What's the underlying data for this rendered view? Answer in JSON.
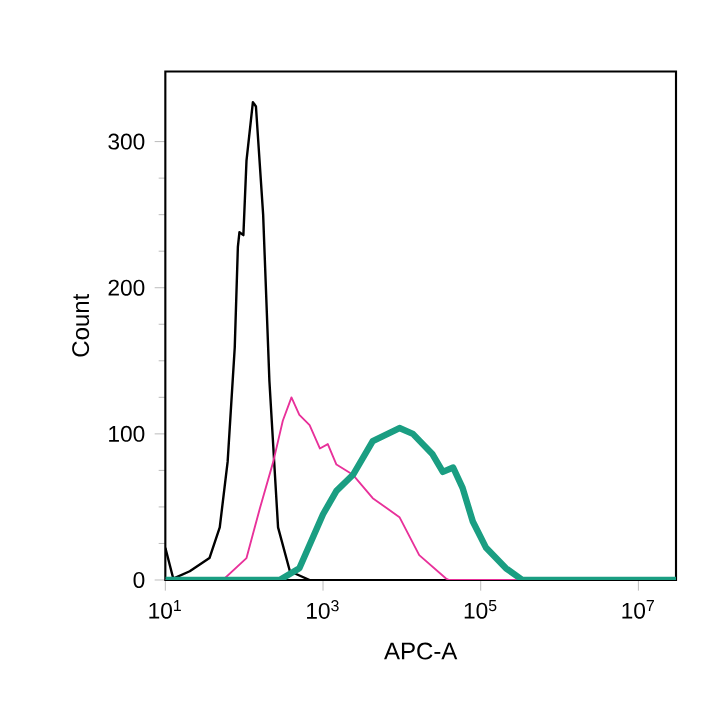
{
  "chart_data": {
    "type": "line",
    "xlabel": "APC-A",
    "ylabel": "Count",
    "log": "x",
    "xlim": [
      10,
      30000000
    ],
    "ylim": [
      0,
      348
    ],
    "xticks": [
      {
        "value": 10,
        "label": "10$^{1}$"
      },
      {
        "value": 1000,
        "label": "10$^{3}$"
      },
      {
        "value": 100000,
        "label": "10$^{5}$"
      },
      {
        "value": 10000000,
        "label": "10$^{7}$"
      }
    ],
    "yticks": [
      0,
      100,
      200,
      300
    ],
    "series": [
      {
        "color": "#000000",
        "x": [
          10,
          12.6,
          20.4,
          36.3,
          49,
          61.7,
          75.9,
          83.2,
          87.1,
          97.7,
          107,
          129,
          141,
          174,
          209,
          269,
          380,
          676
        ],
        "values": [
          22,
          1,
          6,
          15,
          36,
          81,
          159,
          228,
          238,
          236,
          287,
          327,
          324,
          250,
          136,
          36,
          6,
          0
        ]
      },
      {
        "color": "#e8319a",
        "x": [
          10,
          53.7,
          107,
          158,
          234,
          309,
          398,
          501,
          676,
          912,
          1150,
          1480,
          2400,
          4270,
          9330,
          16600,
          36300,
          39800,
          30000000
        ],
        "values": [
          0,
          0,
          15,
          49,
          81,
          109,
          125,
          113,
          106,
          90,
          93,
          79,
          72,
          56,
          43,
          17,
          1,
          0,
          0
        ]
      },
      {
        "color": "#1a9e82",
        "x": [
          10,
          282,
          501,
          1000,
          1480,
          2400,
          4270,
          9330,
          13800,
          24500,
          33100,
          44700,
          58900,
          79400,
          117000,
          209000,
          339000,
          30000000
        ],
        "values": [
          0,
          0,
          8,
          45,
          61,
          72,
          95,
          104,
          100,
          86,
          74,
          77,
          63,
          40,
          22,
          8,
          0,
          0
        ]
      }
    ]
  }
}
